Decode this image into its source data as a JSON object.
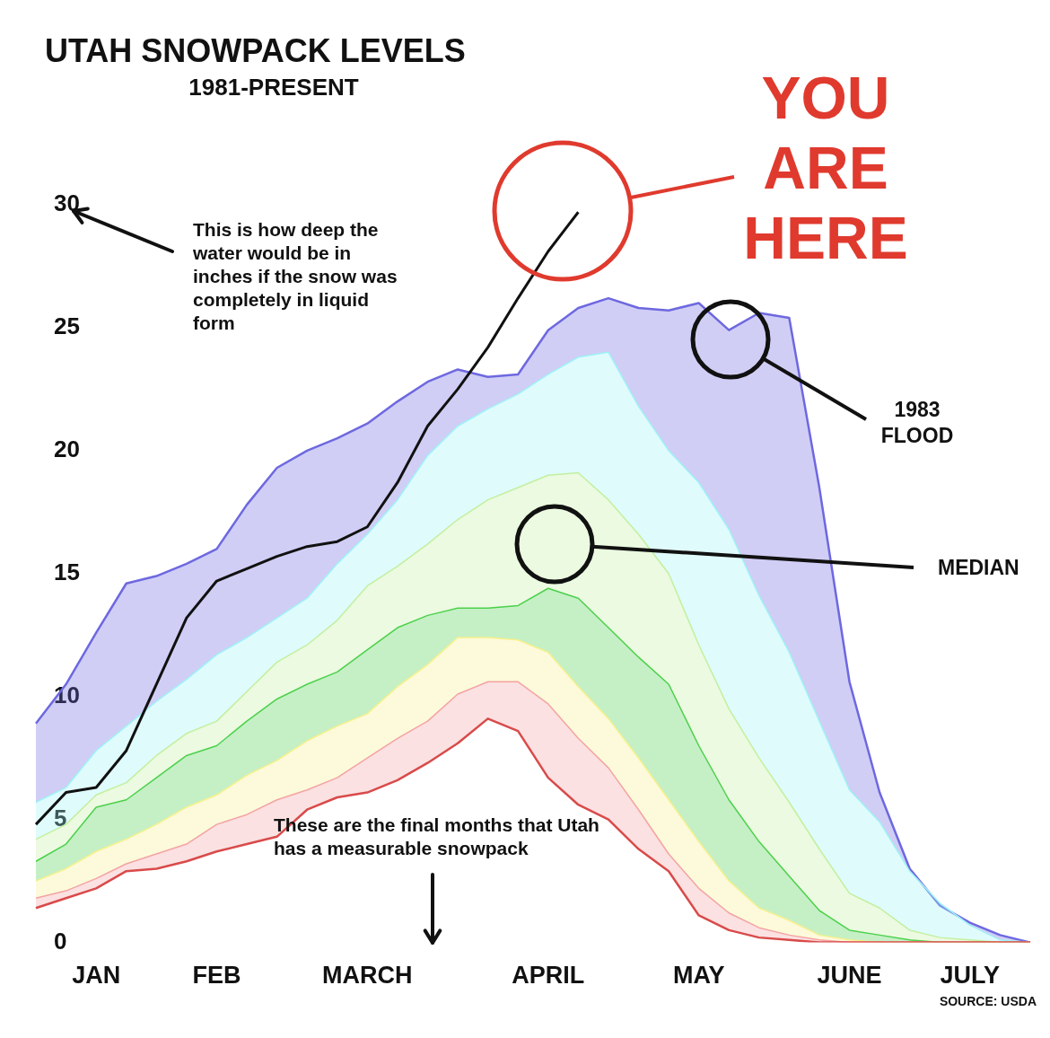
{
  "chart_data": {
    "type": "area",
    "title": "UTAH SNOWPACK LEVELS",
    "subtitle": "1981-PRESENT",
    "categories": [
      null,
      null,
      "JAN",
      null,
      null,
      null,
      "FEB",
      null,
      null,
      null,
      null,
      "MARCH",
      null,
      null,
      null,
      null,
      null,
      "APRIL",
      null,
      null,
      null,
      null,
      "MAY",
      null,
      null,
      null,
      null,
      "JUNE",
      null,
      null,
      null,
      "JULY",
      null,
      null
    ],
    "ylim": [
      0,
      30
    ],
    "yticks": [
      0,
      5,
      10,
      15,
      20,
      25,
      30
    ],
    "grid": false,
    "legend": false,
    "series": [
      {
        "color": "#6e68e0",
        "values": [
          8.9,
          10.5,
          12.6,
          14.6,
          14.9,
          15.4,
          16.0,
          17.8,
          19.3,
          20.0,
          20.5,
          21.1,
          22.0,
          22.8,
          23.3,
          23.0,
          23.1,
          24.9,
          25.8,
          26.2,
          25.8,
          25.7,
          26.0,
          24.9,
          25.6,
          25.4,
          18.5,
          10.6,
          6.1,
          3.0,
          1.5,
          0.8,
          0.3,
          0
        ]
      },
      {
        "color": "#9ef2f7",
        "values": [
          5.7,
          6.3,
          7.8,
          8.8,
          9.8,
          10.7,
          11.7,
          12.4,
          13.2,
          14.0,
          15.4,
          16.6,
          18.0,
          19.8,
          21.0,
          21.7,
          22.3,
          23.1,
          23.8,
          24.0,
          21.8,
          20.0,
          18.7,
          16.8,
          14.1,
          11.8,
          9.0,
          6.2,
          4.9,
          2.9,
          1.6,
          0.7,
          0.1,
          0
        ]
      },
      {
        "color": "#c2f0a0",
        "values": [
          4.2,
          4.8,
          6.0,
          6.5,
          7.6,
          8.5,
          9.0,
          10.2,
          11.4,
          12.1,
          13.1,
          14.5,
          15.3,
          16.2,
          17.2,
          18.0,
          18.5,
          19.0,
          19.1,
          18.0,
          16.6,
          15.0,
          12.1,
          9.5,
          7.5,
          5.7,
          3.8,
          2.0,
          1.4,
          0.5,
          0.2,
          0.1,
          0,
          0
        ]
      },
      {
        "color": "#4cd04c",
        "values": [
          3.3,
          4.0,
          5.5,
          5.8,
          6.7,
          7.6,
          8.0,
          9.0,
          9.9,
          10.5,
          11.0,
          11.9,
          12.8,
          13.3,
          13.6,
          13.6,
          13.7,
          14.4,
          14.0,
          12.8,
          11.6,
          10.5,
          8.0,
          5.8,
          4.1,
          2.7,
          1.3,
          0.5,
          0.3,
          0.1,
          0,
          0,
          0,
          0
        ]
      },
      {
        "color": "#f7f08c",
        "values": [
          2.5,
          3.0,
          3.7,
          4.2,
          4.8,
          5.5,
          6.0,
          6.8,
          7.4,
          8.2,
          8.8,
          9.3,
          10.4,
          11.3,
          12.4,
          12.4,
          12.3,
          11.8,
          10.4,
          9.1,
          7.5,
          5.8,
          4.1,
          2.5,
          1.4,
          0.9,
          0.3,
          0.1,
          0,
          0,
          0,
          0,
          0,
          0
        ]
      },
      {
        "color": "#f4a3a3",
        "values": [
          1.8,
          2.1,
          2.6,
          3.2,
          3.6,
          4.0,
          4.8,
          5.2,
          5.8,
          6.2,
          6.7,
          7.5,
          8.3,
          9.0,
          10.1,
          10.6,
          10.6,
          9.7,
          8.3,
          7.1,
          5.4,
          3.6,
          2.2,
          1.2,
          0.6,
          0.3,
          0.1,
          0,
          0,
          0,
          0,
          0,
          0,
          0
        ]
      },
      {
        "type": "line",
        "color": "#d94a4a",
        "values": [
          1.4,
          1.8,
          2.2,
          2.9,
          3.0,
          3.3,
          3.7,
          4.0,
          4.3,
          5.4,
          5.9,
          6.1,
          6.6,
          7.3,
          8.1,
          9.1,
          8.6,
          6.7,
          5.6,
          5.0,
          3.8,
          2.9,
          1.1,
          0.5,
          0.2,
          0.1,
          0,
          0,
          0,
          0,
          0,
          0,
          0,
          0
        ]
      },
      {
        "type": "line",
        "color": "#111111",
        "values": [
          4.8,
          6.1,
          6.3,
          7.8,
          10.5,
          13.2,
          14.7,
          15.2,
          15.7,
          16.1,
          16.3,
          16.9,
          18.7,
          21.0,
          22.5,
          24.2,
          26.2,
          28.1,
          29.7,
          null,
          null,
          null,
          null,
          null,
          null,
          null,
          null,
          null,
          null,
          null,
          null,
          null,
          null,
          null
        ]
      }
    ],
    "annotations": [
      "This is how deep the water would be in inches if the snow was completely in liquid form",
      "YOU ARE HERE",
      "1983 FLOOD",
      "MEDIAN",
      "These are the final months that Utah has a measurable snowpack",
      "SOURCE: USDA"
    ]
  }
}
